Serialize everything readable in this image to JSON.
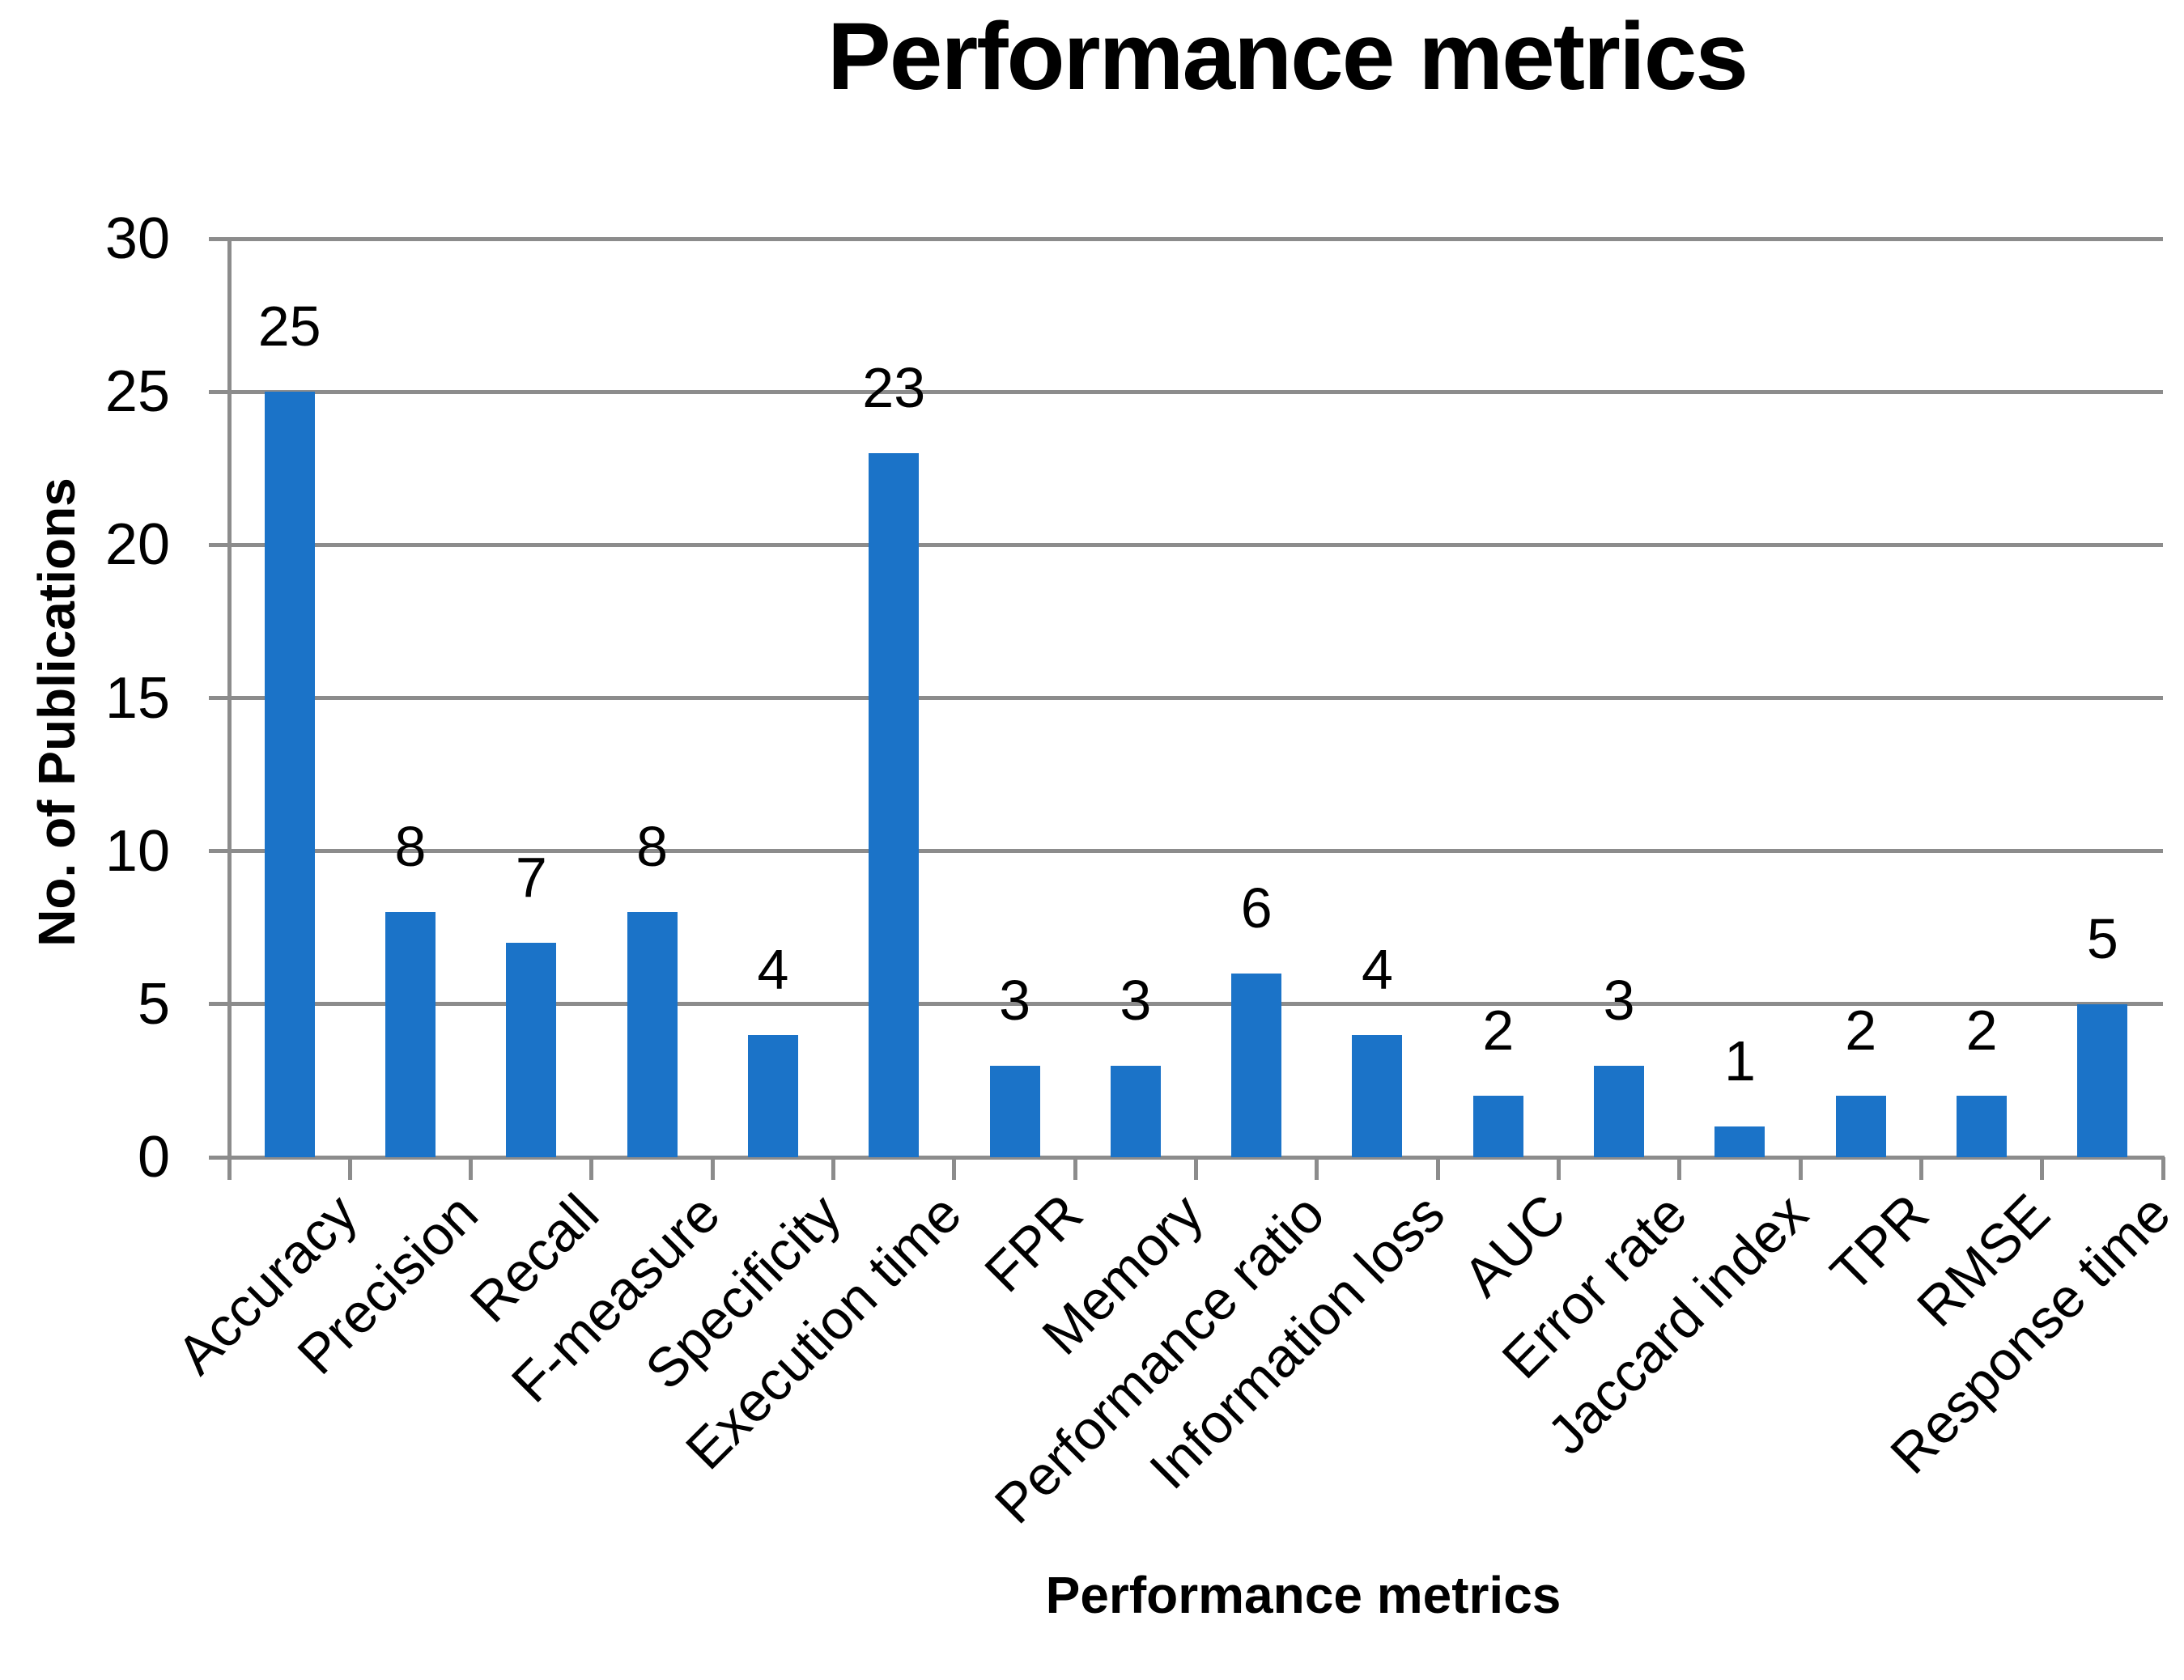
{
  "chart_data": {
    "type": "bar",
    "title": "Performance metrics",
    "xlabel": "Performance metrics",
    "ylabel": "No. of Publications",
    "categories": [
      "Accuracy",
      "Precision",
      "Recall",
      "F-measure",
      "Specificity",
      "Execution time",
      "FPR",
      "Memory",
      "Performance ratio",
      "Information loss",
      "AUC",
      "Error rate",
      "Jaccard index",
      "TPR",
      "RMSE",
      "Response time"
    ],
    "values": [
      25,
      8,
      7,
      8,
      4,
      23,
      3,
      3,
      6,
      4,
      2,
      3,
      1,
      2,
      2,
      5
    ],
    "ylim": [
      0,
      30
    ],
    "yticks": [
      0,
      5,
      10,
      15,
      20,
      25,
      30
    ],
    "grid": "horizontal gridlines on",
    "legend": "none",
    "bar_color": "#1B73C8",
    "grid_color": "#8C8C8C",
    "text_color": "#000000"
  }
}
